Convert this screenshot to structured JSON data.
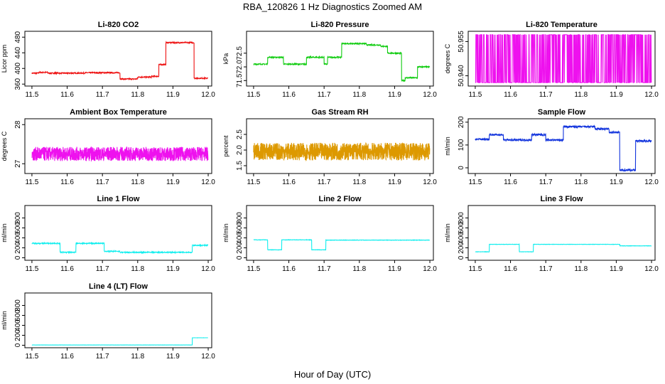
{
  "figure": {
    "title": "RBA_120826  1 Hz Diagnostics Zoomed AM",
    "xlabel": "Hour of Day (UTC)"
  },
  "chart_data": [
    {
      "type": "line",
      "title": "Li-820 CO2",
      "ylabel": "Licor ppm",
      "color": "#ee1111",
      "xlim": [
        11.48,
        12.01
      ],
      "x_ticks": [
        11.5,
        11.6,
        11.7,
        11.8,
        11.9,
        12.0
      ],
      "ylim": [
        355,
        495
      ],
      "y_ticks": [
        360,
        400,
        440,
        480
      ],
      "noise": 1.5,
      "segments": [
        [
          11.5,
          11.52,
          388
        ],
        [
          11.52,
          11.545,
          390
        ],
        [
          11.545,
          11.565,
          388
        ],
        [
          11.565,
          11.6,
          388
        ],
        [
          11.6,
          11.65,
          388
        ],
        [
          11.65,
          11.75,
          389
        ],
        [
          11.75,
          11.8,
          373
        ],
        [
          11.8,
          11.84,
          378
        ],
        [
          11.84,
          11.86,
          380
        ],
        [
          11.86,
          11.88,
          410
        ],
        [
          11.88,
          11.96,
          466
        ],
        [
          11.96,
          12.0,
          375
        ]
      ],
      "segments_type": "steps"
    },
    {
      "type": "line",
      "title": "Li-820 Pressure",
      "ylabel": "kPa",
      "color": "#11cc11",
      "xlim": [
        11.48,
        12.01
      ],
      "x_ticks": [
        11.5,
        11.6,
        11.7,
        11.8,
        11.9,
        12.0
      ],
      "ylim": [
        71.3,
        73.3
      ],
      "y_ticks": [
        71.5,
        72.0,
        72.5
      ],
      "noise": 0.02,
      "segments": [
        [
          11.5,
          11.54,
          72.1
        ],
        [
          11.54,
          11.585,
          72.35
        ],
        [
          11.585,
          11.65,
          72.1
        ],
        [
          11.65,
          11.7,
          72.35
        ],
        [
          11.7,
          11.71,
          72.1
        ],
        [
          11.71,
          11.75,
          72.35
        ],
        [
          11.75,
          11.82,
          72.85
        ],
        [
          11.82,
          11.86,
          72.8
        ],
        [
          11.86,
          11.88,
          72.75
        ],
        [
          11.88,
          11.92,
          72.5
        ],
        [
          11.92,
          11.93,
          71.5
        ],
        [
          11.93,
          11.965,
          71.6
        ],
        [
          11.965,
          12.0,
          72.0
        ]
      ],
      "segments_type": "steps"
    },
    {
      "type": "line",
      "title": "Li-820 Temperature",
      "ylabel": "degrees C",
      "color": "#ee11ee",
      "xlim": [
        11.48,
        12.01
      ],
      "x_ticks": [
        11.5,
        11.6,
        11.7,
        11.8,
        11.9,
        12.0
      ],
      "ylim": [
        50.9355,
        50.9595
      ],
      "y_ticks": [
        50.94,
        50.955
      ],
      "y_extra_labels": [
        "50.955"
      ],
      "segments_type": "toggle",
      "levels": [
        50.937,
        50.958
      ]
    },
    {
      "type": "line",
      "title": "Ambient Box Temperature",
      "ylabel": "degrees C",
      "color": "#ee11ee",
      "xlim": [
        11.48,
        12.01
      ],
      "x_ticks": [
        11.5,
        11.6,
        11.7,
        11.8,
        11.9,
        12.0
      ],
      "ylim": [
        26.75,
        28.15
      ],
      "y_ticks": [
        27.0,
        28.0
      ],
      "noise": 0.18,
      "base": 27.25,
      "segments_type": "noise"
    },
    {
      "type": "line",
      "title": "Gas Stream RH",
      "ylabel": "percent",
      "color": "#dd9900",
      "xlim": [
        11.48,
        12.01
      ],
      "x_ticks": [
        11.5,
        11.6,
        11.7,
        11.8,
        11.9,
        12.0
      ],
      "ylim": [
        1.25,
        3.0
      ],
      "y_ticks": [
        1.5,
        2.0,
        2.5
      ],
      "noise": 0.28,
      "base": 1.95,
      "segments_type": "noise"
    },
    {
      "type": "line",
      "title": "Sample Flow",
      "ylabel": "ml/min",
      "color": "#1133dd",
      "xlim": [
        11.48,
        12.01
      ],
      "x_ticks": [
        11.5,
        11.6,
        11.7,
        11.8,
        11.9,
        12.0
      ],
      "ylim": [
        -25,
        215
      ],
      "y_ticks": [
        0,
        100,
        200
      ],
      "noise": 4,
      "segments": [
        [
          11.5,
          11.54,
          125
        ],
        [
          11.54,
          11.58,
          145
        ],
        [
          11.58,
          11.66,
          122
        ],
        [
          11.66,
          11.7,
          145
        ],
        [
          11.7,
          11.75,
          122
        ],
        [
          11.75,
          11.84,
          180
        ],
        [
          11.84,
          11.88,
          170
        ],
        [
          11.88,
          11.91,
          155
        ],
        [
          11.91,
          11.955,
          -10
        ],
        [
          11.955,
          12.0,
          118
        ]
      ],
      "segments_type": "steps"
    },
    {
      "type": "line",
      "title": "Line 1 Flow",
      "ylabel": "ml/min",
      "color": "#11eeee",
      "xlim": [
        11.48,
        12.01
      ],
      "x_ticks": [
        11.5,
        11.6,
        11.7,
        11.8,
        11.9,
        12.0
      ],
      "ylim": [
        -50,
        1050
      ],
      "y_ticks": [
        0,
        200,
        400,
        600,
        800
      ],
      "noise": 10,
      "segments": [
        [
          11.5,
          11.58,
          290
        ],
        [
          11.58,
          11.625,
          110
        ],
        [
          11.625,
          11.705,
          290
        ],
        [
          11.705,
          11.75,
          130
        ],
        [
          11.75,
          11.955,
          110
        ],
        [
          11.955,
          12.0,
          250
        ]
      ],
      "segments_type": "steps"
    },
    {
      "type": "line",
      "title": "Line 2 Flow",
      "ylabel": "ml/min",
      "color": "#11eeee",
      "xlim": [
        11.48,
        12.01
      ],
      "x_ticks": [
        11.5,
        11.6,
        11.7,
        11.8,
        11.9,
        12.0
      ],
      "ylim": [
        -50,
        1050
      ],
      "y_ticks": [
        0,
        200,
        400,
        600,
        800
      ],
      "noise": 4,
      "segments": [
        [
          11.5,
          11.54,
          360
        ],
        [
          11.54,
          11.58,
          160
        ],
        [
          11.58,
          11.665,
          360
        ],
        [
          11.665,
          11.705,
          160
        ],
        [
          11.705,
          12.0,
          355
        ]
      ],
      "segments_type": "steps"
    },
    {
      "type": "line",
      "title": "Line 3 Flow",
      "ylabel": "ml/min",
      "color": "#11eeee",
      "xlim": [
        11.48,
        12.01
      ],
      "x_ticks": [
        11.5,
        11.6,
        11.7,
        11.8,
        11.9,
        12.0
      ],
      "ylim": [
        -50,
        1050
      ],
      "y_ticks": [
        0,
        200,
        400,
        600,
        800
      ],
      "noise": 3,
      "segments": [
        [
          11.5,
          11.54,
          120
        ],
        [
          11.54,
          11.625,
          270
        ],
        [
          11.625,
          11.665,
          120
        ],
        [
          11.665,
          11.91,
          270
        ],
        [
          11.91,
          12.0,
          240
        ]
      ],
      "segments_type": "steps"
    },
    {
      "type": "line",
      "title": "Line 4 (LT) Flow",
      "ylabel": "ml/min",
      "color": "#11eeee",
      "xlim": [
        11.48,
        12.01
      ],
      "x_ticks": [
        11.5,
        11.6,
        11.7,
        11.8,
        11.9,
        12.0
      ],
      "ylim": [
        -50,
        1050
      ],
      "y_ticks": [
        0,
        200,
        400,
        600,
        800
      ],
      "noise": 1,
      "segments": [
        [
          11.5,
          11.955,
          5
        ],
        [
          11.955,
          12.0,
          150
        ]
      ],
      "segments_type": "steps"
    }
  ]
}
